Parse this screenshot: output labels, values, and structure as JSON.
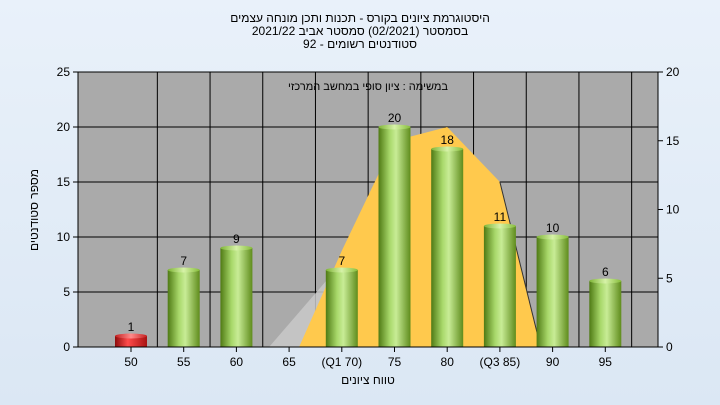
{
  "chart_data": {
    "type": "bar",
    "title_lines": [
      "היסטוגרמת ציונים בקורס - תכנות ותכן מונחה עצמים",
      "בסמסטר  (02/2021)  סמסטר אביב 2021/22",
      "סטודנטים רשומים - 92"
    ],
    "annotation": "במשימה : ציון סופי במחשב המרכזי",
    "xlabel": "טווח ציונים",
    "ylabel": "מספר סטודנטים",
    "categories": [
      "50",
      "55",
      "60",
      "65",
      "(Q1 70)",
      "75",
      "80",
      "(Q3 85)",
      "90",
      "95"
    ],
    "values": [
      1,
      7,
      9,
      0,
      7,
      20,
      18,
      11,
      10,
      6
    ],
    "data_labels": [
      "1",
      "7",
      "9",
      "",
      "7",
      "20",
      "18",
      "11",
      "10",
      "6"
    ],
    "highlight_index": 0,
    "ylim": [
      0,
      25
    ],
    "yticks": [
      0,
      5,
      10,
      15,
      20,
      25
    ],
    "y2lim": [
      0,
      20
    ],
    "y2ticks": [
      0,
      5,
      10,
      15,
      20
    ],
    "distribution_overlay": {
      "y2_values": [
        0,
        0,
        0,
        0,
        7,
        15,
        16,
        12,
        0,
        0
      ],
      "colors": {
        "fill": "#ffc94d",
        "fill_edge": "#c9c9c9",
        "line": "#333333"
      }
    },
    "grid": true,
    "colors": {
      "bar": "#8cc63f",
      "bar_highlight": "#e02020",
      "plot_bg": "#aaaaaa",
      "page_bg": "#e6eef8"
    }
  }
}
